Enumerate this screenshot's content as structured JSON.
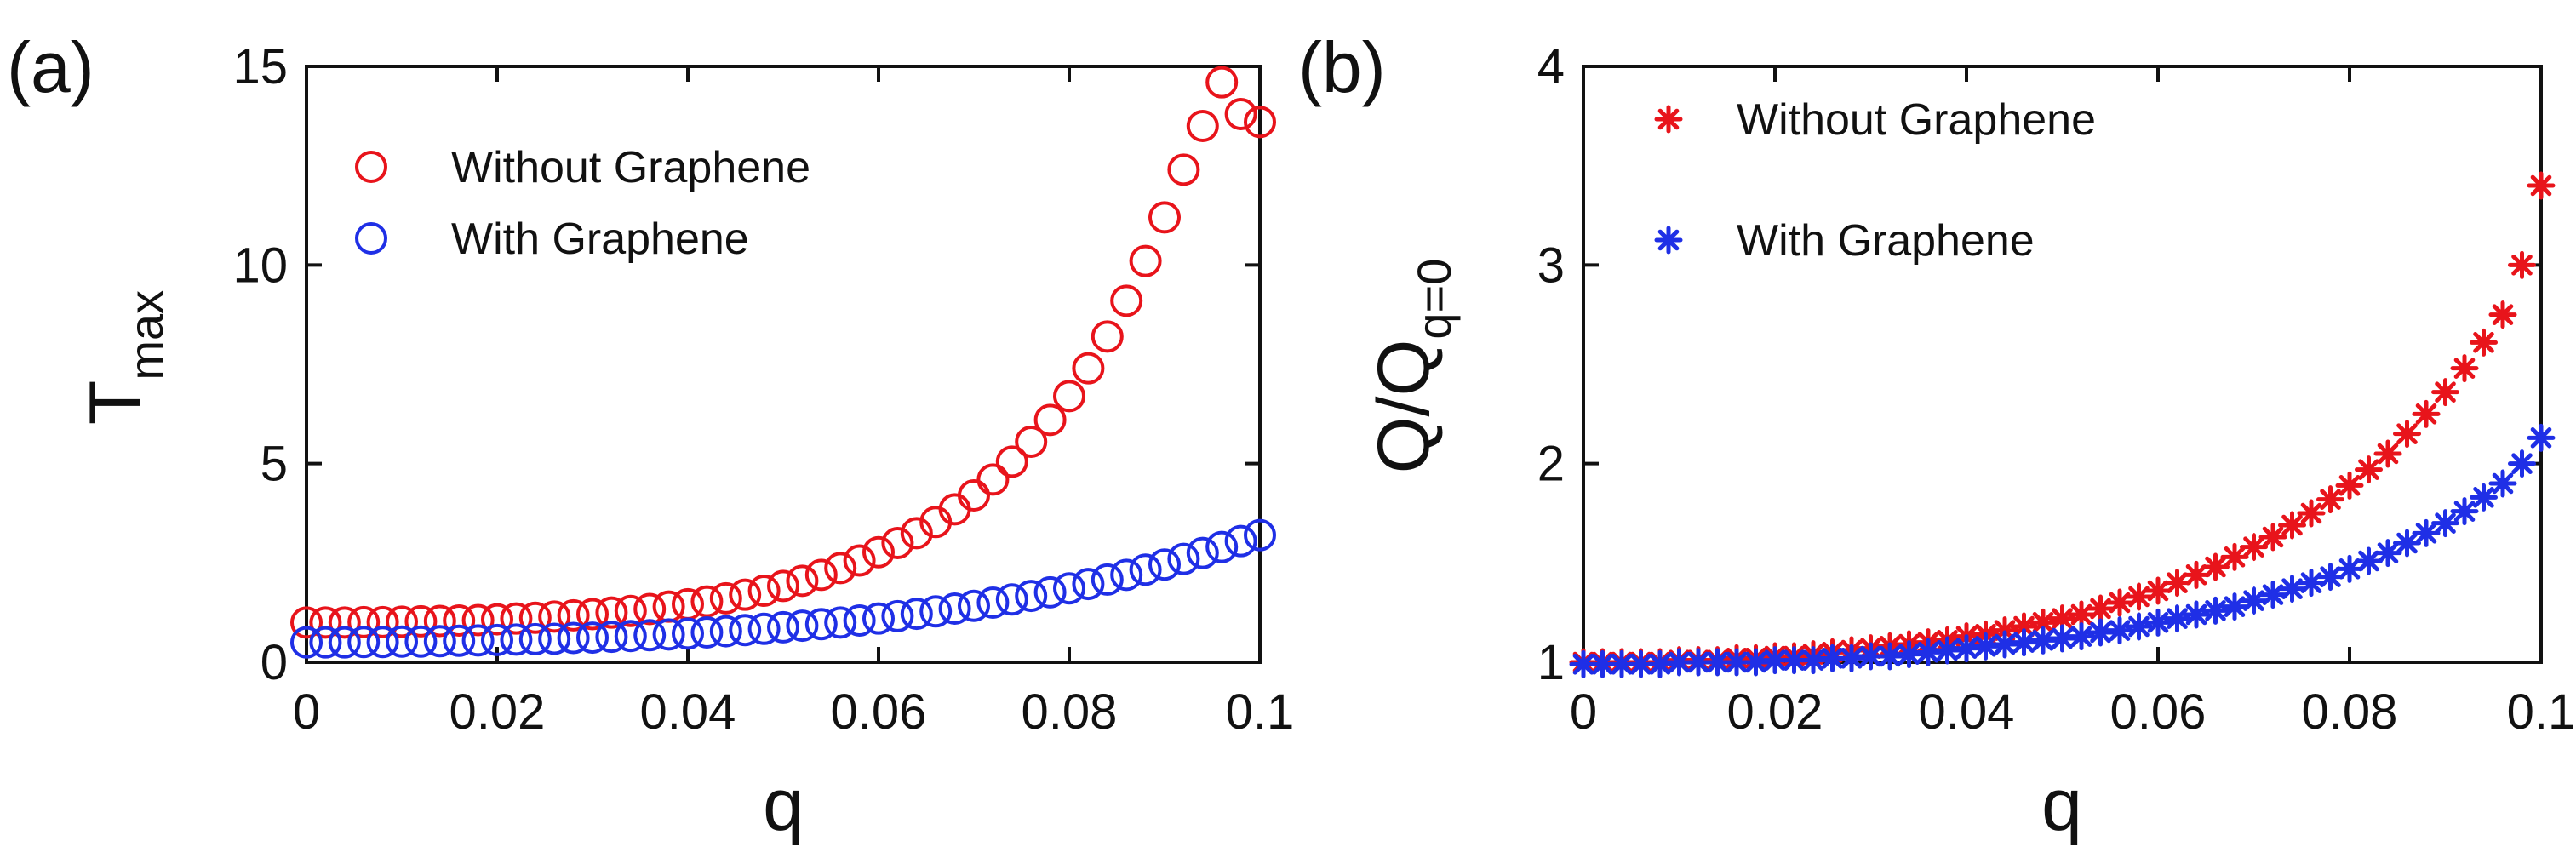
{
  "chart_data": [
    {
      "type": "scatter",
      "panel_label": "(a)",
      "xlabel": "q",
      "ylabel": "T",
      "ylabel_sub": "max",
      "xlim": [
        0,
        0.1
      ],
      "ylim": [
        0,
        15
      ],
      "xticks": [
        0,
        0.02,
        0.04,
        0.06,
        0.08,
        0.1
      ],
      "xtick_labels": [
        "0",
        "0.02",
        "0.04",
        "0.06",
        "0.08",
        "0.1"
      ],
      "yticks": [
        0,
        5,
        10,
        15
      ],
      "ytick_labels": [
        "0",
        "5",
        "10",
        "15"
      ],
      "grid": false,
      "legend": "top-left",
      "marker": "circle",
      "x": [
        0,
        0.002,
        0.004,
        0.006,
        0.008,
        0.01,
        0.012,
        0.014,
        0.016,
        0.018,
        0.02,
        0.022,
        0.024,
        0.026,
        0.028,
        0.03,
        0.032,
        0.034,
        0.036,
        0.038,
        0.04,
        0.042,
        0.044,
        0.046,
        0.048,
        0.05,
        0.052,
        0.054,
        0.056,
        0.058,
        0.06,
        0.062,
        0.064,
        0.066,
        0.068,
        0.07,
        0.072,
        0.074,
        0.076,
        0.078,
        0.08,
        0.082,
        0.084,
        0.086,
        0.088,
        0.09,
        0.092,
        0.094,
        0.096,
        0.098,
        0.1
      ],
      "series": [
        {
          "name": "Without Graphene",
          "color": "#e8141b",
          "values": [
            1.0,
            1.0,
            1.0,
            1.01,
            1.01,
            1.02,
            1.03,
            1.04,
            1.05,
            1.06,
            1.08,
            1.1,
            1.12,
            1.15,
            1.18,
            1.21,
            1.25,
            1.29,
            1.34,
            1.4,
            1.46,
            1.53,
            1.61,
            1.7,
            1.8,
            1.92,
            2.05,
            2.2,
            2.37,
            2.56,
            2.77,
            3.0,
            3.25,
            3.53,
            3.85,
            4.2,
            4.6,
            5.05,
            5.55,
            6.1,
            6.7,
            7.4,
            8.2,
            9.1,
            10.1,
            11.2,
            12.4,
            13.5,
            14.6,
            13.8,
            13.6
          ]
        },
        {
          "name": "With Graphene",
          "color": "#1f2fe6",
          "values": [
            0.5,
            0.5,
            0.5,
            0.51,
            0.51,
            0.52,
            0.52,
            0.53,
            0.54,
            0.55,
            0.56,
            0.57,
            0.58,
            0.59,
            0.61,
            0.62,
            0.64,
            0.66,
            0.68,
            0.7,
            0.72,
            0.75,
            0.78,
            0.81,
            0.84,
            0.88,
            0.92,
            0.96,
            1.0,
            1.05,
            1.1,
            1.16,
            1.22,
            1.28,
            1.35,
            1.42,
            1.5,
            1.58,
            1.67,
            1.76,
            1.86,
            1.97,
            2.08,
            2.2,
            2.33,
            2.46,
            2.6,
            2.75,
            2.9,
            3.05,
            3.2
          ]
        }
      ]
    },
    {
      "type": "scatter",
      "panel_label": "(b)",
      "xlabel": "q",
      "ylabel": "Q/Q",
      "ylabel_sub": "q=0",
      "xlim": [
        0,
        0.1
      ],
      "ylim": [
        1,
        4
      ],
      "xticks": [
        0,
        0.02,
        0.04,
        0.06,
        0.08,
        0.1
      ],
      "xtick_labels": [
        "0",
        "0.02",
        "0.04",
        "0.06",
        "0.08",
        "0.1"
      ],
      "yticks": [
        1,
        2,
        3,
        4
      ],
      "ytick_labels": [
        "1",
        "2",
        "3",
        "4"
      ],
      "grid": false,
      "legend": "top-left",
      "marker": "asterisk",
      "x": [
        0,
        0.002,
        0.004,
        0.006,
        0.008,
        0.01,
        0.012,
        0.014,
        0.016,
        0.018,
        0.02,
        0.022,
        0.024,
        0.026,
        0.028,
        0.03,
        0.032,
        0.034,
        0.036,
        0.038,
        0.04,
        0.042,
        0.044,
        0.046,
        0.048,
        0.05,
        0.052,
        0.054,
        0.056,
        0.058,
        0.06,
        0.062,
        0.064,
        0.066,
        0.068,
        0.07,
        0.072,
        0.074,
        0.076,
        0.078,
        0.08,
        0.082,
        0.084,
        0.086,
        0.088,
        0.09,
        0.092,
        0.094,
        0.096,
        0.098,
        0.1
      ],
      "series": [
        {
          "name": "Without Graphene",
          "color": "#e8141b",
          "values": [
            1.0,
            1.0,
            1.0,
            1.0,
            1.0,
            1.01,
            1.01,
            1.01,
            1.02,
            1.02,
            1.03,
            1.03,
            1.04,
            1.05,
            1.06,
            1.07,
            1.08,
            1.09,
            1.1,
            1.11,
            1.13,
            1.14,
            1.16,
            1.18,
            1.2,
            1.22,
            1.24,
            1.27,
            1.3,
            1.33,
            1.36,
            1.4,
            1.44,
            1.48,
            1.53,
            1.58,
            1.63,
            1.69,
            1.75,
            1.82,
            1.89,
            1.97,
            2.05,
            2.15,
            2.25,
            2.36,
            2.48,
            2.61,
            2.75,
            3.0,
            3.4
          ]
        },
        {
          "name": "With Graphene",
          "color": "#1f2fe6",
          "values": [
            0.99,
            0.99,
            0.99,
            0.99,
            0.99,
            1.0,
            1.0,
            1.0,
            1.0,
            1.0,
            1.01,
            1.01,
            1.01,
            1.02,
            1.02,
            1.03,
            1.03,
            1.04,
            1.05,
            1.06,
            1.07,
            1.08,
            1.09,
            1.1,
            1.11,
            1.12,
            1.13,
            1.15,
            1.16,
            1.18,
            1.2,
            1.22,
            1.24,
            1.26,
            1.28,
            1.31,
            1.34,
            1.37,
            1.4,
            1.43,
            1.47,
            1.51,
            1.55,
            1.6,
            1.65,
            1.7,
            1.76,
            1.83,
            1.9,
            2.0,
            2.13
          ]
        }
      ]
    }
  ]
}
